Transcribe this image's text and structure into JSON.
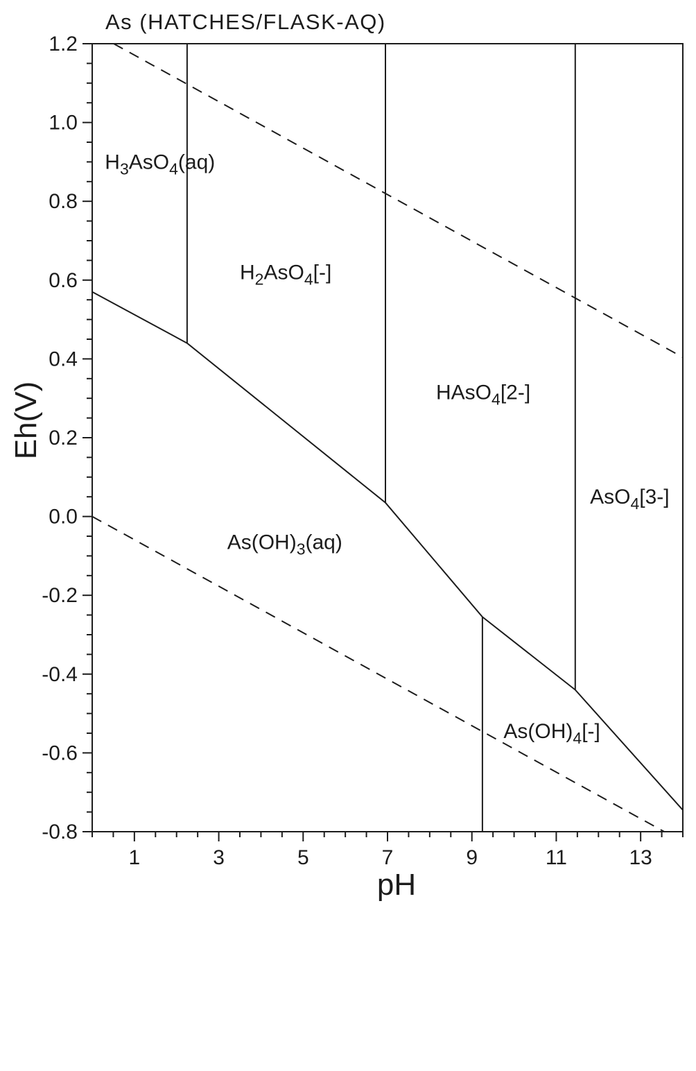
{
  "chart_data": {
    "type": "line",
    "title": "As (HATCHES/FLASK-AQ)",
    "xlabel": "pH",
    "ylabel": "Eh(V)",
    "xlim": [
      0,
      14
    ],
    "ylim": [
      -0.8,
      1.2
    ],
    "grid": false,
    "legend": false,
    "line_color": "#1c1c1c",
    "x_ticks": {
      "values": [
        1,
        3,
        5,
        7,
        9,
        11,
        13
      ],
      "labels": [
        "1",
        "3",
        "5",
        "7",
        "9",
        "11",
        "13"
      ],
      "minor_step": 0.5
    },
    "y_ticks": {
      "values": [
        1.2,
        1.0,
        0.8,
        0.6,
        0.4,
        0.2,
        0.0,
        -0.2,
        -0.4,
        -0.6,
        -0.8
      ],
      "labels": [
        "1.2",
        "1.0",
        "0.8",
        "0.6",
        "0.4",
        "0.2",
        "0.0",
        "-0.2",
        "-0.4",
        "-0.6",
        "-0.8"
      ],
      "minor_step": 0.05
    },
    "boundaries": [
      {
        "name": "boundary-as5-as3-redox",
        "style": "solid",
        "points": [
          [
            0,
            0.57
          ],
          [
            2.25,
            0.44
          ],
          [
            6.95,
            0.035
          ],
          [
            9.25,
            -0.255
          ],
          [
            11.45,
            -0.44
          ],
          [
            14,
            -0.745
          ]
        ]
      },
      {
        "name": "boundary-h3aso4-h2aso4",
        "style": "solid",
        "points": [
          [
            2.25,
            1.2
          ],
          [
            2.25,
            0.44
          ]
        ]
      },
      {
        "name": "boundary-h2aso4-haso4",
        "style": "solid",
        "points": [
          [
            6.95,
            1.2
          ],
          [
            6.95,
            0.035
          ]
        ]
      },
      {
        "name": "boundary-haso4-aso4",
        "style": "solid",
        "points": [
          [
            11.45,
            1.2
          ],
          [
            11.45,
            -0.44
          ]
        ]
      },
      {
        "name": "boundary-asoh3-asoh4",
        "style": "solid",
        "points": [
          [
            9.25,
            -0.255
          ],
          [
            9.25,
            -0.8
          ]
        ]
      },
      {
        "name": "water-stability-upper-o2-line",
        "style": "dashed",
        "points": [
          [
            0.51,
            1.2
          ],
          [
            14,
            0.404
          ]
        ]
      },
      {
        "name": "water-stability-lower-h2-line",
        "style": "dashed",
        "points": [
          [
            0,
            0.0
          ],
          [
            13.56,
            -0.8
          ]
        ]
      }
    ],
    "region_labels": [
      {
        "name": "region-label-h3aso4",
        "text": "H{3}AsO{4}(aq)",
        "x": 0.3,
        "y": 0.9
      },
      {
        "name": "region-label-h2aso4",
        "text": "H{2}AsO{4}[-]",
        "x": 3.5,
        "y": 0.62
      },
      {
        "name": "region-label-haso4",
        "text": "HAsO{4}[2-]",
        "x": 8.15,
        "y": 0.315
      },
      {
        "name": "region-label-aso4",
        "text": "AsO{4}[3-]",
        "x": 11.8,
        "y": 0.05
      },
      {
        "name": "region-label-asoh3",
        "text": "As(OH){3}(aq)",
        "x": 3.2,
        "y": -0.065
      },
      {
        "name": "region-label-asoh4",
        "text": "As(OH){4}[-]",
        "x": 9.75,
        "y": -0.545
      }
    ]
  }
}
